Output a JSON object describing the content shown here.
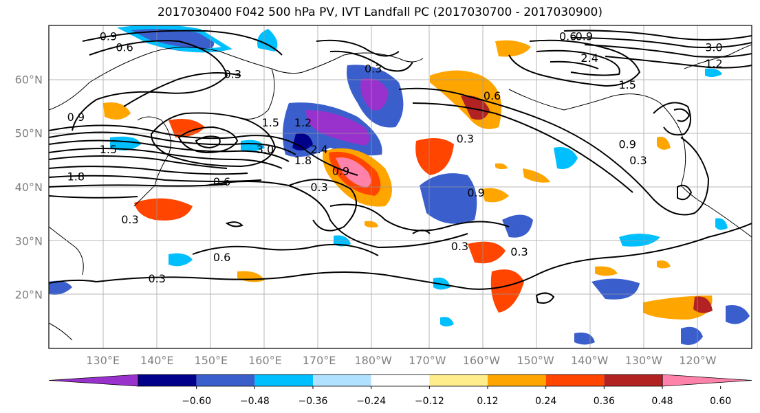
{
  "title": "2017030400 F042 500 hPa PV, IVT Landfall PC (2017030700 - 2017030900)",
  "lon_labels": [
    "130°E",
    "140°E",
    "150°E",
    "160°E",
    "170°E",
    "180°W",
    "170°W",
    "160°W",
    "150°W",
    "140°W",
    "130°W",
    "120°W"
  ],
  "lat_labels": [
    "60°N",
    "50°N",
    "40°N",
    "30°N",
    "20°N"
  ],
  "colorbar": {
    "ticks": [
      "−0.60",
      "−0.48",
      "−0.36",
      "−0.24",
      "−0.12",
      "0.12",
      "0.24",
      "0.36",
      "0.48",
      "0.60"
    ],
    "colors": [
      "#9932cc",
      "#00008b",
      "#3a5fcd",
      "#00bfff",
      "#b0e2ff",
      "#ffffff",
      "#ffec8b",
      "#ffa500",
      "#ff4500",
      "#b22222",
      "#ff82ab"
    ]
  },
  "contour_labels": [
    {
      "text": "0.9",
      "lon": 131,
      "lat": 68
    },
    {
      "text": "0.6",
      "lon": 134,
      "lat": 66
    },
    {
      "text": "0.3",
      "lon": 154,
      "lat": 61
    },
    {
      "text": "0.9",
      "lon": 125,
      "lat": 53
    },
    {
      "text": "1.5",
      "lon": 131,
      "lat": 47
    },
    {
      "text": "1.8",
      "lon": 125,
      "lat": 42
    },
    {
      "text": "1.5",
      "lon": 161,
      "lat": 52
    },
    {
      "text": "1.2",
      "lon": 167,
      "lat": 52
    },
    {
      "text": "3.0",
      "lon": 160,
      "lat": 47
    },
    {
      "text": "2.4",
      "lon": 170,
      "lat": 47
    },
    {
      "text": "1.8",
      "lon": 167,
      "lat": 45
    },
    {
      "text": "0.9",
      "lon": 174,
      "lat": 43
    },
    {
      "text": "0.6",
      "lon": 152,
      "lat": 41
    },
    {
      "text": "0.3",
      "lon": 170,
      "lat": 40
    },
    {
      "text": "0.3",
      "lon": 180,
      "lat": 62
    },
    {
      "text": "0.3",
      "lon": 197,
      "lat": 49
    },
    {
      "text": "0.9",
      "lon": 199,
      "lat": 39
    },
    {
      "text": "0.6",
      "lon": 202,
      "lat": 57
    },
    {
      "text": "0.3",
      "lon": 196,
      "lat": 29
    },
    {
      "text": "0.3",
      "lon": 207,
      "lat": 28
    },
    {
      "text": "0.6",
      "lon": 152,
      "lat": 27
    },
    {
      "text": "0.3",
      "lon": 140,
      "lat": 23
    },
    {
      "text": "0.3",
      "lon": 135,
      "lat": 34
    },
    {
      "text": "0.6",
      "lon": 216,
      "lat": 68
    },
    {
      "text": "0.9",
      "lon": 219,
      "lat": 68
    },
    {
      "text": "2.4",
      "lon": 220,
      "lat": 64
    },
    {
      "text": "3.0",
      "lon": 243,
      "lat": 66
    },
    {
      "text": "1.2",
      "lon": 243,
      "lat": 63
    },
    {
      "text": "1.5",
      "lon": 227,
      "lat": 59
    },
    {
      "text": "0.9",
      "lon": 227,
      "lat": 48
    },
    {
      "text": "0.3",
      "lon": 229,
      "lat": 45
    }
  ]
}
